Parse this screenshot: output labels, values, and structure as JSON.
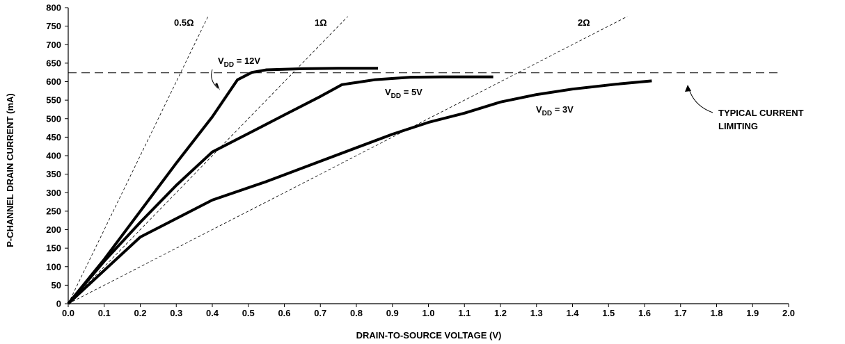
{
  "chart_data": {
    "type": "line",
    "title": "",
    "xlabel": "DRAIN-TO-SOURCE VOLTAGE (V)",
    "ylabel": "P-CHANNEL DRAIN CURRENT (mA)",
    "xlim": [
      0.0,
      2.0
    ],
    "ylim": [
      0,
      800
    ],
    "x_ticks": [
      "0.0",
      "0.1",
      "0.2",
      "0.3",
      "0.4",
      "0.5",
      "0.6",
      "0.7",
      "0.8",
      "0.9",
      "1.0",
      "1.1",
      "1.2",
      "1.3",
      "1.4",
      "1.5",
      "1.6",
      "1.7",
      "1.8",
      "1.9",
      "2.0"
    ],
    "y_ticks": [
      "0",
      "50",
      "100",
      "150",
      "200",
      "250",
      "300",
      "350",
      "400",
      "450",
      "500",
      "550",
      "600",
      "650",
      "700",
      "750",
      "800"
    ],
    "grid": false,
    "series": [
      {
        "name": "VDD = 12V",
        "label_main": "V",
        "label_sub": "DD",
        "label_rest": " = 12V",
        "points": [
          [
            0.0,
            0
          ],
          [
            0.1,
            120
          ],
          [
            0.2,
            250
          ],
          [
            0.3,
            380
          ],
          [
            0.4,
            505
          ],
          [
            0.47,
            605
          ],
          [
            0.51,
            625
          ],
          [
            0.55,
            632
          ],
          [
            0.65,
            635
          ],
          [
            0.75,
            636
          ],
          [
            0.86,
            636
          ]
        ]
      },
      {
        "name": "VDD = 5V",
        "label_main": "V",
        "label_sub": "DD",
        "label_rest": " = 5V",
        "points": [
          [
            0.0,
            0
          ],
          [
            0.1,
            115
          ],
          [
            0.2,
            220
          ],
          [
            0.3,
            320
          ],
          [
            0.4,
            410
          ],
          [
            0.5,
            460
          ],
          [
            0.6,
            510
          ],
          [
            0.7,
            560
          ],
          [
            0.76,
            592
          ],
          [
            0.85,
            605
          ],
          [
            0.95,
            612
          ],
          [
            1.05,
            613
          ],
          [
            1.18,
            613
          ]
        ]
      },
      {
        "name": "VDD = 3V",
        "label_main": "V",
        "label_sub": "DD",
        "label_rest": " = 3V",
        "points": [
          [
            0.0,
            0
          ],
          [
            0.2,
            180
          ],
          [
            0.4,
            280
          ],
          [
            0.55,
            330
          ],
          [
            0.7,
            385
          ],
          [
            0.9,
            458
          ],
          [
            1.0,
            490
          ],
          [
            1.1,
            515
          ],
          [
            1.2,
            545
          ],
          [
            1.3,
            565
          ],
          [
            1.4,
            580
          ],
          [
            1.52,
            593
          ],
          [
            1.62,
            602
          ]
        ]
      }
    ],
    "resistance_lines": [
      {
        "label": "0.5Ω",
        "ohms": 0.5
      },
      {
        "label": "1Ω",
        "ohms": 1.0
      },
      {
        "label": "2Ω",
        "ohms": 2.0
      }
    ],
    "current_limit": {
      "value": 624,
      "label_line1": "TYPICAL CURRENT",
      "label_line2": "LIMITING"
    }
  }
}
